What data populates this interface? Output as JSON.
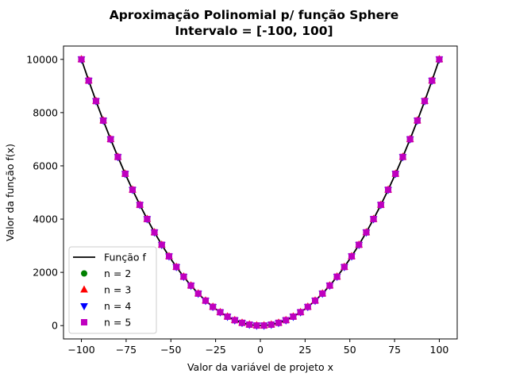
{
  "chart_data": {
    "type": "line",
    "title_line1": "Aproximação Polinomial p/ função Sphere",
    "title_line2": "Intervalo = [-100, 100]",
    "xlabel": "Valor da variável de projeto x",
    "ylabel": "Valor da função f(x)",
    "xlim": [
      -110,
      110
    ],
    "ylim": [
      -500,
      10500
    ],
    "x_ticks": [
      -100,
      -75,
      -50,
      -25,
      0,
      25,
      50,
      75,
      100
    ],
    "x_tick_labels": [
      "−100",
      "−75",
      "−50",
      "−25",
      "0",
      "25",
      "50",
      "75",
      "100"
    ],
    "y_ticks": [
      0,
      2000,
      4000,
      6000,
      8000,
      10000
    ],
    "y_tick_labels": [
      "0",
      "2000",
      "4000",
      "6000",
      "8000",
      "10000"
    ],
    "grid": false,
    "legend_position": "lower-left",
    "x": [
      -100,
      -95.918,
      -91.837,
      -87.755,
      -83.673,
      -79.592,
      -75.51,
      -71.429,
      -67.347,
      -63.265,
      -59.184,
      -55.102,
      -51.02,
      -46.939,
      -42.857,
      -38.776,
      -34.694,
      -30.612,
      -26.531,
      -22.449,
      -18.367,
      -14.286,
      -10.204,
      -6.122,
      -2.041,
      2.041,
      6.122,
      10.204,
      14.286,
      18.367,
      22.449,
      26.531,
      30.612,
      34.694,
      38.776,
      42.857,
      46.939,
      51.02,
      55.102,
      59.184,
      63.265,
      67.347,
      71.429,
      75.51,
      79.592,
      83.673,
      87.755,
      91.837,
      95.918,
      100
    ],
    "series": [
      {
        "name": "Função f",
        "style": "line",
        "color": "#000000",
        "values": [
          10000,
          9200.3,
          8434.0,
          7701.0,
          7001.2,
          6334.9,
          5701.8,
          5102.0,
          4535.6,
          4002.5,
          3502.7,
          3036.2,
          2603.1,
          2203.3,
          1836.7,
          1503.6,
          1203.7,
          937.1,
          703.9,
          504.0,
          337.4,
          204.1,
          104.1,
          37.5,
          4.2,
          4.2,
          37.5,
          104.1,
          204.1,
          337.4,
          504.0,
          703.9,
          937.1,
          1203.7,
          1503.6,
          1836.7,
          2203.3,
          2603.1,
          3036.2,
          3502.7,
          4002.5,
          4535.6,
          5102.0,
          5701.8,
          6334.9,
          7001.2,
          7701.0,
          8434.0,
          9200.3,
          10000
        ]
      },
      {
        "name": "n = 2",
        "style": "marker",
        "marker": "circle",
        "color": "#008000",
        "values": [
          10000,
          9200.3,
          8434.0,
          7701.0,
          7001.2,
          6334.9,
          5701.8,
          5102.0,
          4535.6,
          4002.5,
          3502.7,
          3036.2,
          2603.1,
          2203.3,
          1836.7,
          1503.6,
          1203.7,
          937.1,
          703.9,
          504.0,
          337.4,
          204.1,
          104.1,
          37.5,
          4.2,
          4.2,
          37.5,
          104.1,
          204.1,
          337.4,
          504.0,
          703.9,
          937.1,
          1203.7,
          1503.6,
          1836.7,
          2203.3,
          2603.1,
          3036.2,
          3502.7,
          4002.5,
          4535.6,
          5102.0,
          5701.8,
          6334.9,
          7001.2,
          7701.0,
          8434.0,
          9200.3,
          10000
        ]
      },
      {
        "name": "n = 3",
        "style": "marker",
        "marker": "triangle-up",
        "color": "#ff0000",
        "values": [
          10000,
          9200.3,
          8434.0,
          7701.0,
          7001.2,
          6334.9,
          5701.8,
          5102.0,
          4535.6,
          4002.5,
          3502.7,
          3036.2,
          2603.1,
          2203.3,
          1836.7,
          1503.6,
          1203.7,
          937.1,
          703.9,
          504.0,
          337.4,
          204.1,
          104.1,
          37.5,
          4.2,
          4.2,
          37.5,
          104.1,
          204.1,
          337.4,
          504.0,
          703.9,
          937.1,
          1203.7,
          1503.6,
          1836.7,
          2203.3,
          2603.1,
          3036.2,
          3502.7,
          4002.5,
          4535.6,
          5102.0,
          5701.8,
          6334.9,
          7001.2,
          7701.0,
          8434.0,
          9200.3,
          10000
        ]
      },
      {
        "name": "n = 4",
        "style": "marker",
        "marker": "triangle-down",
        "color": "#0000ff",
        "values": [
          10000,
          9200.3,
          8434.0,
          7701.0,
          7001.2,
          6334.9,
          5701.8,
          5102.0,
          4535.6,
          4002.5,
          3502.7,
          3036.2,
          2603.1,
          2203.3,
          1836.7,
          1503.6,
          1203.7,
          937.1,
          703.9,
          504.0,
          337.4,
          204.1,
          104.1,
          37.5,
          4.2,
          4.2,
          37.5,
          104.1,
          204.1,
          337.4,
          504.0,
          703.9,
          937.1,
          1203.7,
          1503.6,
          1836.7,
          2203.3,
          2603.1,
          3036.2,
          3502.7,
          4002.5,
          4535.6,
          5102.0,
          5701.8,
          6334.9,
          7001.2,
          7701.0,
          8434.0,
          9200.3,
          10000
        ]
      },
      {
        "name": "n = 5",
        "style": "marker",
        "marker": "square",
        "color": "#bf00bf",
        "values": [
          10000,
          9200.3,
          8434.0,
          7701.0,
          7001.2,
          6334.9,
          5701.8,
          5102.0,
          4535.6,
          4002.5,
          3502.7,
          3036.2,
          2603.1,
          2203.3,
          1836.7,
          1503.6,
          1203.7,
          937.1,
          703.9,
          504.0,
          337.4,
          204.1,
          104.1,
          37.5,
          4.2,
          4.2,
          37.5,
          104.1,
          204.1,
          337.4,
          504.0,
          703.9,
          937.1,
          1203.7,
          1503.6,
          1836.7,
          2203.3,
          2603.1,
          3036.2,
          3502.7,
          4002.5,
          4535.6,
          5102.0,
          5701.8,
          6334.9,
          7001.2,
          7701.0,
          8434.0,
          9200.3,
          10000
        ]
      }
    ]
  }
}
